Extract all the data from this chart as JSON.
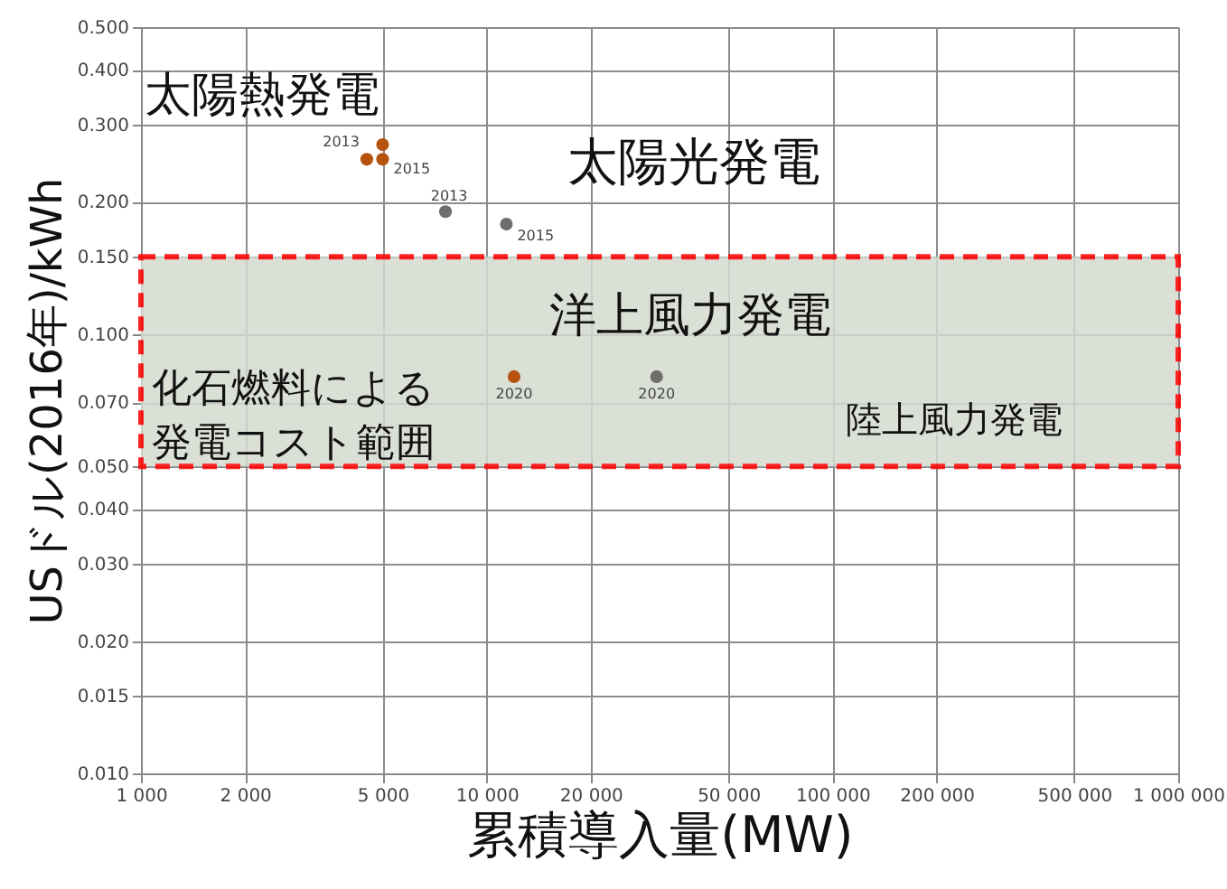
{
  "chart_data": {
    "type": "scatter",
    "xlabel": "累積導入量(MW)",
    "ylabel": "USドル(2016年)/kWh",
    "log": "xy",
    "grid": true,
    "marker": "circle",
    "xlim": [
      1000,
      1000000
    ],
    "ylim": [
      0.01,
      0.5
    ],
    "xticks": [
      {
        "value": 1000,
        "label": "1 000"
      },
      {
        "value": 2000,
        "label": "2 000"
      },
      {
        "value": 5000,
        "label": "5 000"
      },
      {
        "value": 10000,
        "label": "10 000"
      },
      {
        "value": 20000,
        "label": "20 000"
      },
      {
        "value": 50000,
        "label": "50 000"
      },
      {
        "value": 100000,
        "label": "100 000"
      },
      {
        "value": 200000,
        "label": "200 000"
      },
      {
        "value": 500000,
        "label": "500 000"
      },
      {
        "value": 1000000,
        "label": "1 000 000"
      }
    ],
    "yticks": [
      {
        "value": 0.01,
        "label": "0.010"
      },
      {
        "value": 0.015,
        "label": "0.015"
      },
      {
        "value": 0.02,
        "label": "0.020"
      },
      {
        "value": 0.03,
        "label": "0.030"
      },
      {
        "value": 0.04,
        "label": "0.040"
      },
      {
        "value": 0.05,
        "label": "0.050"
      },
      {
        "value": 0.07,
        "label": "0.070"
      },
      {
        "value": 0.1,
        "label": "0.100"
      },
      {
        "value": 0.15,
        "label": "0.150"
      },
      {
        "value": 0.2,
        "label": "0.200"
      },
      {
        "value": 0.3,
        "label": "0.300"
      },
      {
        "value": 0.4,
        "label": "0.400"
      },
      {
        "value": 0.5,
        "label": "0.500"
      }
    ],
    "series": [
      {
        "color": "#b5530f",
        "x": [
          4500,
          5000,
          5000,
          12000
        ],
        "values": [
          0.25,
          0.25,
          0.27,
          0.08
        ]
      },
      {
        "color": "#6e6e6e",
        "x": [
          7600,
          11400,
          31000
        ],
        "values": [
          0.19,
          0.178,
          0.08
        ]
      }
    ],
    "bands": [
      {
        "axis": "y",
        "from": 0.05,
        "to": 0.15,
        "label": "化石燃料による発電コスト範囲",
        "color": "#d5dbd0"
      }
    ],
    "annotations": [
      "太陽熱発電",
      "太陽光発電",
      "洋上風力発電",
      "陸上風力発電",
      {
        "text": "2013",
        "x": 4500,
        "y": 0.25
      },
      {
        "text": "2015",
        "x": 5000,
        "y": 0.25
      },
      {
        "text": "2020",
        "x": 12000,
        "y": 0.08
      },
      {
        "text": "2013",
        "x": 7600,
        "y": 0.19
      },
      {
        "text": "2015",
        "x": 11400,
        "y": 0.178
      },
      {
        "text": "2020",
        "x": 31000,
        "y": 0.08
      }
    ]
  }
}
